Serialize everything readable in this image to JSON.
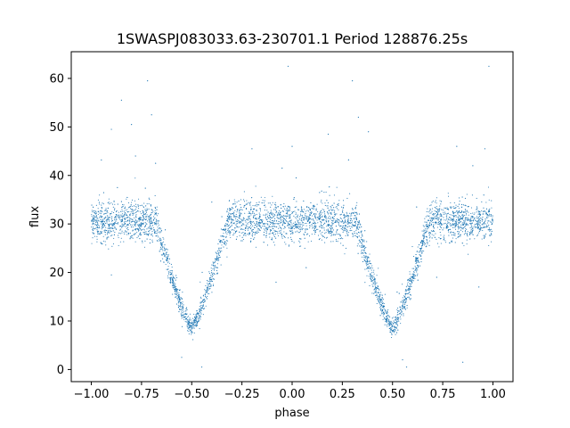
{
  "chart_data": {
    "type": "scatter",
    "title": "1SWASPJ083033.63-230701.1 Period 128876.25s",
    "xlabel": "phase",
    "ylabel": "flux",
    "xlim": [
      -1.1,
      1.1
    ],
    "ylim": [
      -2.5,
      65.5
    ],
    "xticks": [
      -1.0,
      -0.75,
      -0.5,
      -0.25,
      0.0,
      0.25,
      0.5,
      0.75,
      1.0
    ],
    "xtick_labels": [
      "−1.00",
      "−0.75",
      "−0.50",
      "−0.25",
      "0.00",
      "0.25",
      "0.50",
      "0.75",
      "1.00"
    ],
    "yticks": [
      0,
      10,
      20,
      30,
      40,
      50,
      60
    ],
    "ytick_labels": [
      "0",
      "10",
      "20",
      "30",
      "40",
      "50",
      "60"
    ],
    "grid": false,
    "legend": "none",
    "marker_color": "#1f77b4",
    "series": [
      {
        "phase_range": [
          -1.0,
          1.0
        ],
        "baseline_flux": 30.5,
        "scatter_sd": 2.0,
        "minima": [
          {
            "phase": -0.5,
            "flux": 8.5
          },
          {
            "phase": 0.5,
            "flux": 8.5
          }
        ],
        "eclipse_half_width": 0.18,
        "x": [
          -1.0,
          -0.75,
          -0.6,
          -0.55,
          -0.5,
          -0.45,
          -0.4,
          -0.25,
          0.0,
          0.25,
          0.4,
          0.45,
          0.5,
          0.55,
          0.6,
          0.75,
          1.0
        ],
        "y": [
          30.5,
          30.5,
          25,
          16,
          8.5,
          16,
          25,
          30.5,
          30.5,
          30.5,
          25,
          16,
          8.5,
          16,
          25,
          30.5,
          30.5
        ],
        "outliers": [
          {
            "x": -0.95,
            "y": 43.2
          },
          {
            "x": -0.9,
            "y": 49.5
          },
          {
            "x": -0.87,
            "y": 37.5
          },
          {
            "x": -0.85,
            "y": 55.5
          },
          {
            "x": -0.8,
            "y": 50.5
          },
          {
            "x": -0.78,
            "y": 44.0
          },
          {
            "x": -0.72,
            "y": 59.5
          },
          {
            "x": -0.7,
            "y": 52.5
          },
          {
            "x": -0.68,
            "y": 42.5
          },
          {
            "x": -0.4,
            "y": 34.5
          },
          {
            "x": -0.35,
            "y": 31.5
          },
          {
            "x": -0.2,
            "y": 45.5
          },
          {
            "x": -0.08,
            "y": 18.0
          },
          {
            "x": 0.0,
            "y": 46.0
          },
          {
            "x": -0.02,
            "y": 62.5
          },
          {
            "x": 0.07,
            "y": 21.0
          },
          {
            "x": 0.18,
            "y": 48.5
          },
          {
            "x": 0.3,
            "y": 59.5
          },
          {
            "x": 0.33,
            "y": 52.0
          },
          {
            "x": 0.38,
            "y": 49.0
          },
          {
            "x": 0.62,
            "y": 33.5
          },
          {
            "x": 0.72,
            "y": 19.0
          },
          {
            "x": 0.82,
            "y": 46.0
          },
          {
            "x": 0.9,
            "y": 42.0
          },
          {
            "x": 0.96,
            "y": 45.5
          },
          {
            "x": 0.98,
            "y": 62.5
          },
          {
            "x": 0.93,
            "y": 17.0
          },
          {
            "x": -0.55,
            "y": 2.5
          },
          {
            "x": 0.55,
            "y": 2.0
          },
          {
            "x": -0.45,
            "y": 0.5
          },
          {
            "x": 0.57,
            "y": 0.5
          },
          {
            "x": 0.02,
            "y": 39.5
          },
          {
            "x": -0.05,
            "y": 41.5
          },
          {
            "x": 0.85,
            "y": 1.5
          },
          {
            "x": -0.9,
            "y": 19.5
          }
        ]
      }
    ]
  }
}
